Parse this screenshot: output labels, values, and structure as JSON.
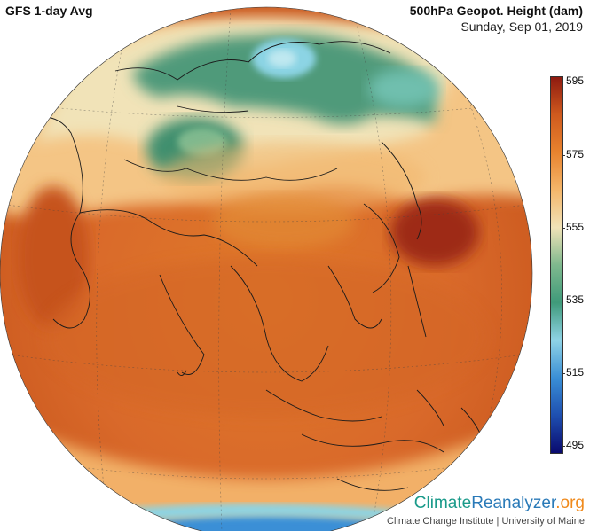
{
  "header": {
    "model_title": "GFS 1-day Avg",
    "variable_title": "500hPa Geopot. Height (dam)",
    "date": "Sunday, Sep 01, 2019"
  },
  "colorbar": {
    "ticks": [
      "595",
      "575",
      "555",
      "535",
      "515",
      "495"
    ],
    "colors": [
      "#0a0a6e",
      "#1e4fb0",
      "#3a8fd6",
      "#8fd3e6",
      "#3f9a7a",
      "#7fb98e",
      "#f1e3b8",
      "#f4b66a",
      "#e8832e",
      "#cf5a1e",
      "#8e1a10"
    ]
  },
  "map": {
    "region": "Asia",
    "palette": {
      "ocean_base": "#d2661e",
      "warm_high": "#b8401a",
      "green_low": "#4f9a7a",
      "cool_low": "#8cd4e4",
      "coast_line": "#1a1a1a"
    }
  },
  "branding": {
    "name_part1": "Climate",
    "name_part2": "Reanalyzer",
    "name_part3": ".org",
    "subtitle": "Climate Change Institute | University of Maine"
  }
}
